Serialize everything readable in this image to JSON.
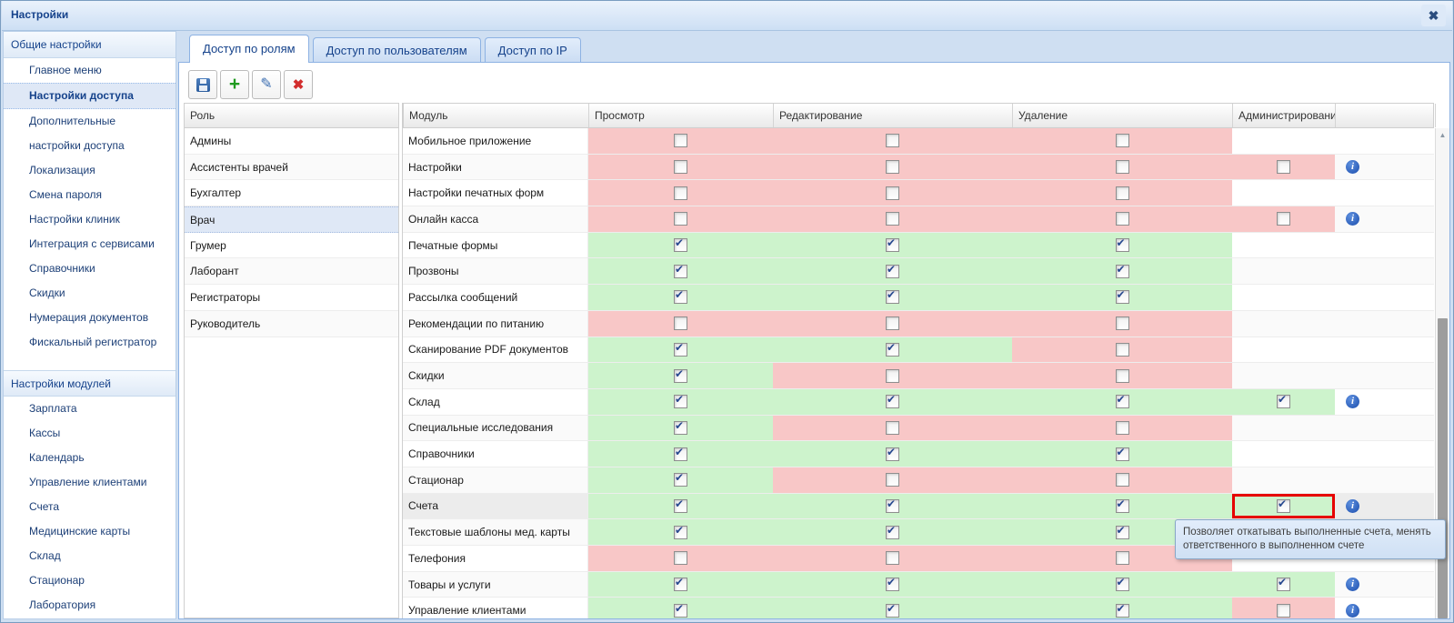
{
  "window": {
    "title": "Настройки"
  },
  "icons": {
    "close": "✖",
    "check": "✔",
    "info_letter": "i",
    "scroll_up": "▲",
    "plus": "+",
    "pencil": "✎",
    "delete_x": "✖"
  },
  "colors": {
    "accent": "#15428b",
    "green": "#cdf3cc",
    "pink": "#f8c7c7",
    "selected_row": "#ececec",
    "red_outline": "#e60000",
    "tab_border": "#8db2e3"
  },
  "sidebar": {
    "sections": [
      {
        "title": "Общие настройки",
        "items": [
          {
            "label": "Главное меню"
          },
          {
            "label": "Настройки доступа",
            "selected": true
          },
          {
            "label": "Дополнительные настройки доступа"
          },
          {
            "label": "Локализация"
          },
          {
            "label": "Смена пароля"
          },
          {
            "label": "Настройки клиник"
          },
          {
            "label": "Интеграция с сервисами"
          },
          {
            "label": "Справочники"
          },
          {
            "label": "Скидки"
          },
          {
            "label": "Нумерация документов"
          },
          {
            "label": "Фискальный регистратор"
          }
        ]
      },
      {
        "title": "Настройки модулей",
        "items": [
          {
            "label": "Зарплата"
          },
          {
            "label": "Кассы"
          },
          {
            "label": "Календарь"
          },
          {
            "label": "Управление клиентами"
          },
          {
            "label": "Счета"
          },
          {
            "label": "Медицинские карты"
          },
          {
            "label": "Склад"
          },
          {
            "label": "Стационар"
          },
          {
            "label": "Лаборатория"
          }
        ]
      }
    ]
  },
  "tabs": [
    {
      "label": "Доступ по ролям",
      "active": true
    },
    {
      "label": "Доступ по пользователям",
      "active": false
    },
    {
      "label": "Доступ по IP",
      "active": false
    }
  ],
  "toolbar": {
    "buttons": [
      {
        "name": "save",
        "icon": "floppy-icon"
      },
      {
        "name": "add",
        "icon": "plus-icon"
      },
      {
        "name": "edit",
        "icon": "pencil-icon"
      },
      {
        "name": "delete",
        "icon": "delete-x-icon"
      }
    ]
  },
  "roles": {
    "header": "Роль",
    "items": [
      {
        "label": "Админы"
      },
      {
        "label": "Ассистенты врачей"
      },
      {
        "label": "Бухгалтер"
      },
      {
        "label": "Врач",
        "selected": true
      },
      {
        "label": "Грумер"
      },
      {
        "label": "Лаборант"
      },
      {
        "label": "Регистраторы"
      },
      {
        "label": "Руководитель"
      }
    ]
  },
  "grid": {
    "columns": [
      "Модуль",
      "Просмотр",
      "Редактирование",
      "Удаление",
      "Администрирование",
      ""
    ],
    "rows": [
      {
        "module": "Мобильное приложение",
        "cells": [
          {
            "bg": "p",
            "checked": 0
          },
          {
            "bg": "p",
            "checked": 0
          },
          {
            "bg": "p",
            "checked": 0
          },
          null
        ],
        "info": false
      },
      {
        "module": "Настройки",
        "cells": [
          {
            "bg": "p",
            "checked": 0
          },
          {
            "bg": "p",
            "checked": 0
          },
          {
            "bg": "p",
            "checked": 0
          },
          {
            "bg": "p",
            "checked": 0
          }
        ],
        "info": true
      },
      {
        "module": "Настройки печатных форм",
        "cells": [
          {
            "bg": "p",
            "checked": 0
          },
          {
            "bg": "p",
            "checked": 0
          },
          {
            "bg": "p",
            "checked": 0
          },
          null
        ],
        "info": false
      },
      {
        "module": "Онлайн касса",
        "cells": [
          {
            "bg": "p",
            "checked": 0
          },
          {
            "bg": "p",
            "checked": 0
          },
          {
            "bg": "p",
            "checked": 0
          },
          {
            "bg": "p",
            "checked": 0
          }
        ],
        "info": true
      },
      {
        "module": "Печатные формы",
        "cells": [
          {
            "bg": "g",
            "checked": 1
          },
          {
            "bg": "g",
            "checked": 1
          },
          {
            "bg": "g",
            "checked": 1
          },
          null
        ],
        "info": false
      },
      {
        "module": "Прозвоны",
        "cells": [
          {
            "bg": "g",
            "checked": 1
          },
          {
            "bg": "g",
            "checked": 1
          },
          {
            "bg": "g",
            "checked": 1
          },
          null
        ],
        "info": false
      },
      {
        "module": "Рассылка сообщений",
        "cells": [
          {
            "bg": "g",
            "checked": 1
          },
          {
            "bg": "g",
            "checked": 1
          },
          {
            "bg": "g",
            "checked": 1
          },
          null
        ],
        "info": false
      },
      {
        "module": "Рекомендации по питанию",
        "cells": [
          {
            "bg": "p",
            "checked": 0
          },
          {
            "bg": "p",
            "checked": 0
          },
          {
            "bg": "p",
            "checked": 0
          },
          null
        ],
        "info": false
      },
      {
        "module": "Сканирование PDF документов",
        "cells": [
          {
            "bg": "g",
            "checked": 1
          },
          {
            "bg": "g",
            "checked": 1
          },
          {
            "bg": "p",
            "checked": 0
          },
          null
        ],
        "info": false
      },
      {
        "module": "Скидки",
        "cells": [
          {
            "bg": "g",
            "checked": 1
          },
          {
            "bg": "p",
            "checked": 0
          },
          {
            "bg": "p",
            "checked": 0
          },
          null
        ],
        "info": false
      },
      {
        "module": "Склад",
        "cells": [
          {
            "bg": "g",
            "checked": 1
          },
          {
            "bg": "g",
            "checked": 1
          },
          {
            "bg": "g",
            "checked": 1
          },
          {
            "bg": "g",
            "checked": 1
          }
        ],
        "info": true
      },
      {
        "module": "Специальные исследования",
        "cells": [
          {
            "bg": "g",
            "checked": 1
          },
          {
            "bg": "p",
            "checked": 0
          },
          {
            "bg": "p",
            "checked": 0
          },
          null
        ],
        "info": false
      },
      {
        "module": "Справочники",
        "cells": [
          {
            "bg": "g",
            "checked": 1
          },
          {
            "bg": "g",
            "checked": 1
          },
          {
            "bg": "g",
            "checked": 1
          },
          null
        ],
        "info": false
      },
      {
        "module": "Стационар",
        "cells": [
          {
            "bg": "g",
            "checked": 1
          },
          {
            "bg": "p",
            "checked": 0
          },
          {
            "bg": "p",
            "checked": 0
          },
          null
        ],
        "info": false
      },
      {
        "module": "Счета",
        "cells": [
          {
            "bg": "g",
            "checked": 1
          },
          {
            "bg": "g",
            "checked": 1
          },
          {
            "bg": "g",
            "checked": 1
          },
          {
            "bg": "g",
            "checked": 1
          }
        ],
        "info": true,
        "selected": true,
        "outline_cell": 3
      },
      {
        "module": "Текстовые шаблоны мед. карты",
        "cells": [
          {
            "bg": "g",
            "checked": 1
          },
          {
            "bg": "g",
            "checked": 1
          },
          {
            "bg": "g",
            "checked": 1
          },
          null
        ],
        "info": false
      },
      {
        "module": "Телефония",
        "cells": [
          {
            "bg": "p",
            "checked": 0
          },
          {
            "bg": "p",
            "checked": 0
          },
          {
            "bg": "p",
            "checked": 0
          },
          null
        ],
        "info": false
      },
      {
        "module": "Товары и услуги",
        "cells": [
          {
            "bg": "g",
            "checked": 1
          },
          {
            "bg": "g",
            "checked": 1
          },
          {
            "bg": "g",
            "checked": 1
          },
          {
            "bg": "g",
            "checked": 1
          }
        ],
        "info": true
      },
      {
        "module": "Управление клиентами",
        "cells": [
          {
            "bg": "g",
            "checked": 1
          },
          {
            "bg": "g",
            "checked": 1
          },
          {
            "bg": "g",
            "checked": 1
          },
          {
            "bg": "p",
            "checked": 0
          }
        ],
        "info": true
      }
    ]
  },
  "tooltip": {
    "text": "Позволяет откатывать выполненные счета, менять ответственного в выполненном счете"
  }
}
